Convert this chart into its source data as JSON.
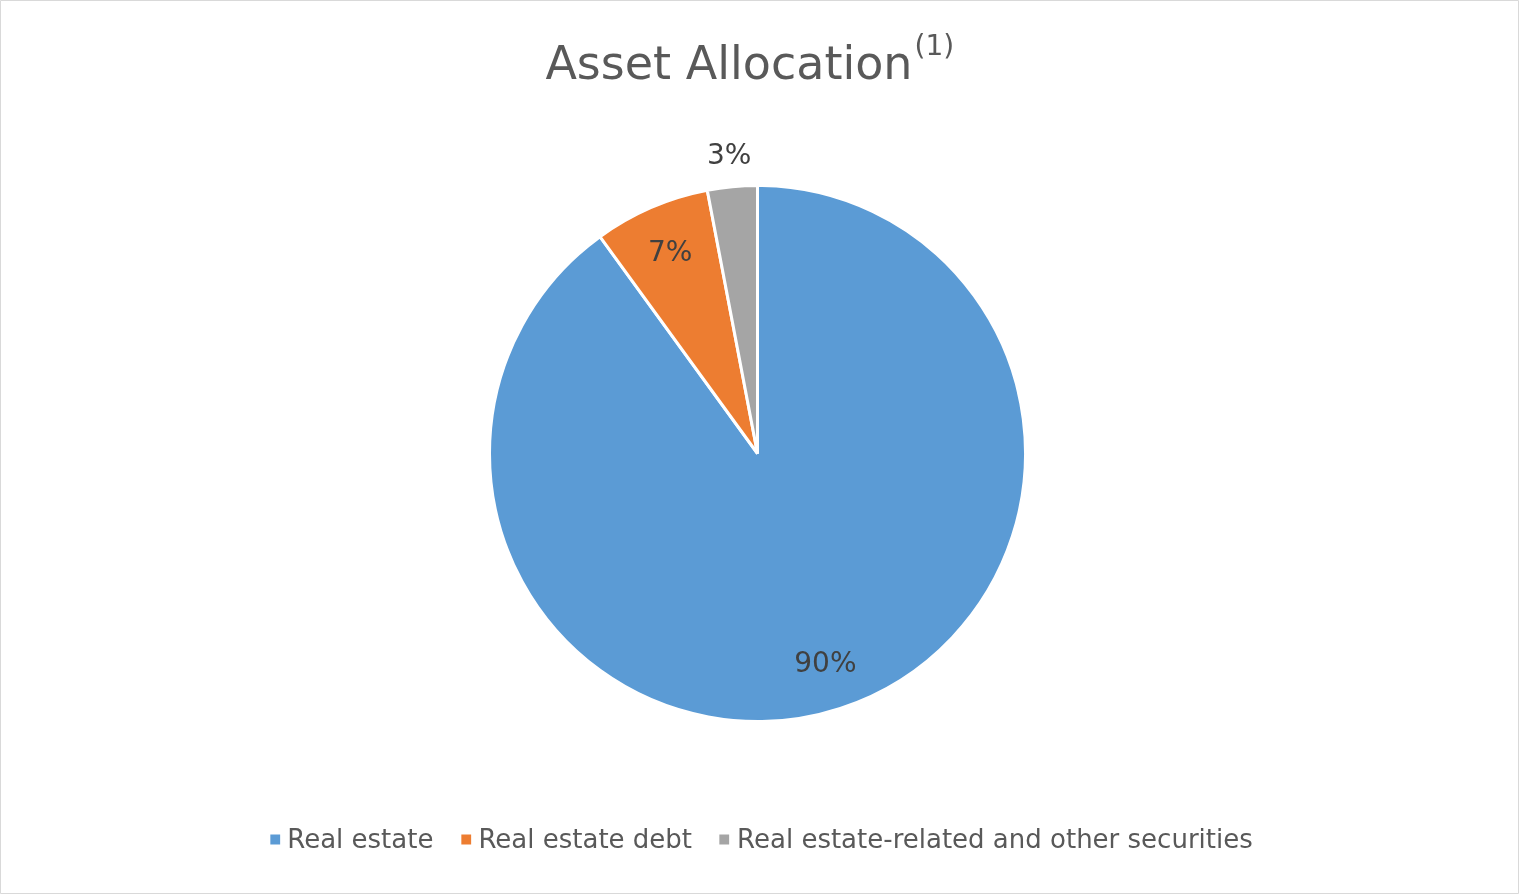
{
  "chart_data": {
    "type": "pie",
    "title": "Asset Allocation$^{(1)}$",
    "categories": [
      "Real estate",
      "Real estate debt",
      "Real estate-related and other securities"
    ],
    "values": [
      90,
      7,
      3
    ],
    "colors": [
      "#5b9bd5",
      "#ed7d31",
      "#a5a5a5"
    ],
    "value_labels": [
      "90%",
      "7%",
      "3%"
    ],
    "legend": "bottom"
  }
}
